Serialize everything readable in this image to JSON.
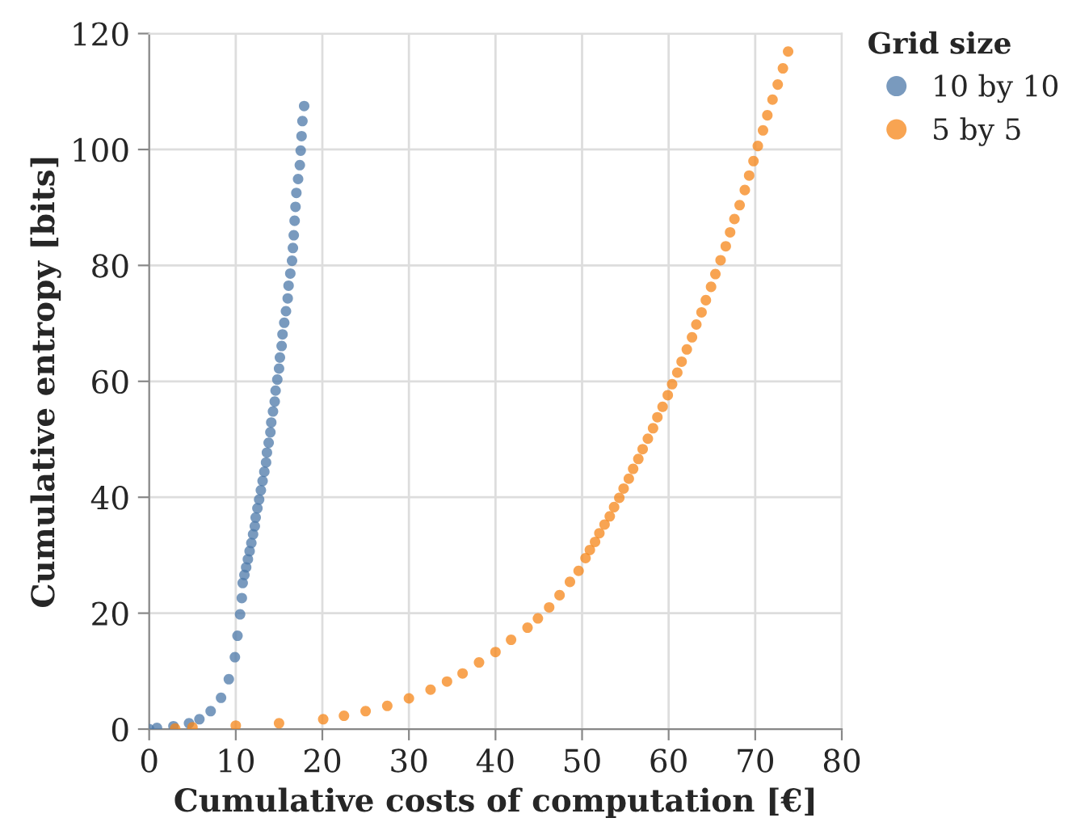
{
  "chart_data": {
    "type": "scatter",
    "xlabel": "Cumulative costs of computation [€]",
    "ylabel": "Cumulative entropy [bits]",
    "legend_title": "Grid size",
    "legend": "top right",
    "grid": true,
    "marker": "circle",
    "xlim": [
      0,
      80
    ],
    "xticks": [
      0,
      10,
      20,
      30,
      40,
      50,
      60,
      70,
      80
    ],
    "ylim": [
      0,
      120
    ],
    "yticks": [
      0,
      20,
      40,
      60,
      80,
      100,
      120
    ],
    "series": [
      {
        "name": "10 by 10",
        "color": "#4c78a8",
        "x": [
          0,
          0.9,
          2.8,
          4.6,
          5.8,
          7.1,
          8.3,
          9.2,
          9.9,
          10.2,
          10.5,
          10.7,
          10.8,
          11.0,
          11.2,
          11.4,
          11.6,
          11.8,
          12.0,
          12.2,
          12.3,
          12.5,
          12.7,
          12.9,
          13.1,
          13.3,
          13.5,
          13.6,
          13.8,
          14.0,
          14.1,
          14.3,
          14.5,
          14.6,
          14.8,
          15.0,
          15.1,
          15.3,
          15.4,
          15.6,
          15.8,
          16.0,
          16.1,
          16.3,
          16.5,
          16.6,
          16.7,
          16.8,
          16.9,
          17.0,
          17.2,
          17.4,
          17.5,
          17.6,
          17.7,
          17.9
        ],
        "values": [
          0,
          0.2,
          0.5,
          1.0,
          1.7,
          3.1,
          5.4,
          8.6,
          12.4,
          16.1,
          19.8,
          22.6,
          25.2,
          26.6,
          27.9,
          29.3,
          30.7,
          32.1,
          33.6,
          35.0,
          36.5,
          38.1,
          39.6,
          41.2,
          42.8,
          44.4,
          46.0,
          47.7,
          49.4,
          51.2,
          52.9,
          54.8,
          56.5,
          58.4,
          60.3,
          62.2,
          64.1,
          66.1,
          68.1,
          70.1,
          72.1,
          74.3,
          76.5,
          78.6,
          80.8,
          83.0,
          85.2,
          87.7,
          90.1,
          92.5,
          94.9,
          97.3,
          99.8,
          102.3,
          104.9,
          107.5
        ]
      },
      {
        "name": "5 by 5",
        "color": "#f58518",
        "x": [
          3,
          5,
          10,
          15,
          20.1,
          22.5,
          25.0,
          27.5,
          30.0,
          32.5,
          34.4,
          36.2,
          38.1,
          40.0,
          41.8,
          43.7,
          44.9,
          46.2,
          47.4,
          48.6,
          49.6,
          50.4,
          50.9,
          51.5,
          52.0,
          52.6,
          53.2,
          53.7,
          54.3,
          54.8,
          55.4,
          55.9,
          56.5,
          57.0,
          57.6,
          58.2,
          58.7,
          59.3,
          59.9,
          60.4,
          61.0,
          61.5,
          62.1,
          62.7,
          63.2,
          63.8,
          64.3,
          64.9,
          65.4,
          66.0,
          66.6,
          67.1,
          67.6,
          68.2,
          68.8,
          69.3,
          69.8,
          70.3,
          70.9,
          71.4,
          72.0,
          72.6,
          73.2,
          73.8
        ],
        "values": [
          0.1,
          0.3,
          0.6,
          1.0,
          1.7,
          2.3,
          3.1,
          4.0,
          5.3,
          6.8,
          8.2,
          9.6,
          11.5,
          13.3,
          15.4,
          17.5,
          19.1,
          21.0,
          23.1,
          25.4,
          27.3,
          29.5,
          30.9,
          32.3,
          33.8,
          35.3,
          36.7,
          38.3,
          39.9,
          41.5,
          43.2,
          44.9,
          46.6,
          48.3,
          50.1,
          51.9,
          53.8,
          55.6,
          57.6,
          59.5,
          61.5,
          63.4,
          65.5,
          67.6,
          69.8,
          71.9,
          74.0,
          76.3,
          78.5,
          80.9,
          83.3,
          85.7,
          88.0,
          90.4,
          93.0,
          95.5,
          98.0,
          100.6,
          103.3,
          105.9,
          108.6,
          111.2,
          114.0,
          116.9
        ]
      }
    ]
  }
}
